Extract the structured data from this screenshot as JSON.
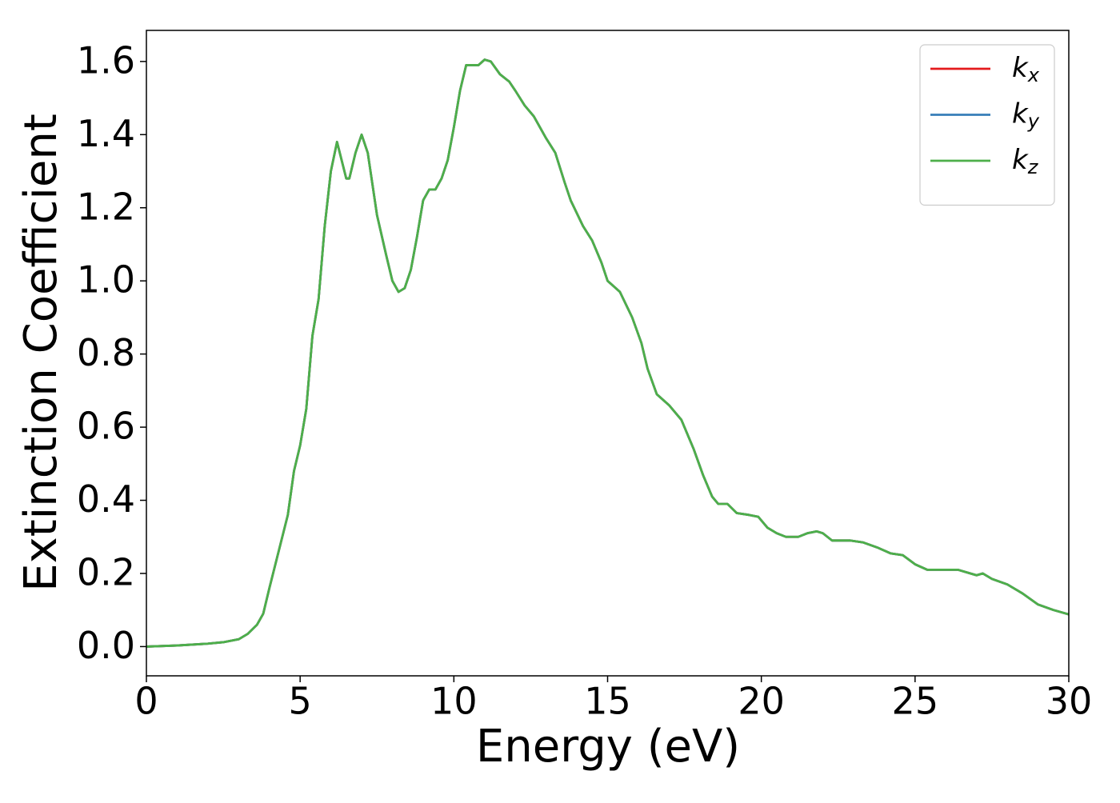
{
  "chart_data": {
    "type": "line",
    "xlabel": "Energy (eV)",
    "ylabel": "Extinction Coefficient",
    "x": [
      0,
      1,
      2,
      2.5,
      3,
      3.3,
      3.6,
      3.8,
      4,
      4.3,
      4.6,
      4.8,
      5,
      5.2,
      5.4,
      5.6,
      5.8,
      6.0,
      6.2,
      6.35,
      6.5,
      6.6,
      6.8,
      7.0,
      7.2,
      7.5,
      7.8,
      8.0,
      8.2,
      8.4,
      8.6,
      8.8,
      9.0,
      9.2,
      9.4,
      9.6,
      9.8,
      10.0,
      10.2,
      10.4,
      10.6,
      10.8,
      11.0,
      11.2,
      11.5,
      11.8,
      12.0,
      12.3,
      12.6,
      13.0,
      13.3,
      13.6,
      13.8,
      14.2,
      14.5,
      14.8,
      15.0,
      15.4,
      15.8,
      16.1,
      16.3,
      16.6,
      17.0,
      17.4,
      17.8,
      18.1,
      18.4,
      18.6,
      18.9,
      19.2,
      19.6,
      19.9,
      20.2,
      20.5,
      20.8,
      21.2,
      21.5,
      21.8,
      22.0,
      22.3,
      22.6,
      22.9,
      23.3,
      23.8,
      24.2,
      24.6,
      25.0,
      25.4,
      26.0,
      26.4,
      26.8,
      27.0,
      27.2,
      27.5,
      28.0,
      28.5,
      29.0,
      29.5,
      30.0
    ],
    "series": [
      {
        "name": "kx",
        "color": "#e41a1c",
        "values": [
          0,
          0.003,
          0.008,
          0.012,
          0.02,
          0.035,
          0.06,
          0.09,
          0.16,
          0.26,
          0.36,
          0.48,
          0.55,
          0.65,
          0.85,
          0.95,
          1.15,
          1.3,
          1.38,
          1.33,
          1.28,
          1.28,
          1.35,
          1.4,
          1.35,
          1.18,
          1.07,
          1.0,
          0.97,
          0.98,
          1.03,
          1.12,
          1.22,
          1.25,
          1.25,
          1.28,
          1.33,
          1.42,
          1.52,
          1.59,
          1.59,
          1.59,
          1.605,
          1.6,
          1.565,
          1.545,
          1.52,
          1.48,
          1.45,
          1.39,
          1.35,
          1.27,
          1.22,
          1.15,
          1.11,
          1.05,
          1.0,
          0.97,
          0.9,
          0.83,
          0.76,
          0.69,
          0.66,
          0.62,
          0.54,
          0.47,
          0.41,
          0.39,
          0.39,
          0.365,
          0.36,
          0.355,
          0.325,
          0.31,
          0.3,
          0.3,
          0.31,
          0.315,
          0.31,
          0.29,
          0.29,
          0.29,
          0.285,
          0.27,
          0.255,
          0.25,
          0.225,
          0.21,
          0.21,
          0.21,
          0.2,
          0.195,
          0.2,
          0.185,
          0.17,
          0.145,
          0.115,
          0.1,
          0.088
        ]
      },
      {
        "name": "ky",
        "color": "#377eb8",
        "values": [
          0,
          0.003,
          0.008,
          0.012,
          0.02,
          0.035,
          0.06,
          0.09,
          0.16,
          0.26,
          0.36,
          0.48,
          0.55,
          0.65,
          0.85,
          0.95,
          1.15,
          1.3,
          1.38,
          1.33,
          1.28,
          1.28,
          1.35,
          1.4,
          1.35,
          1.18,
          1.07,
          1.0,
          0.97,
          0.98,
          1.03,
          1.12,
          1.22,
          1.25,
          1.25,
          1.28,
          1.33,
          1.42,
          1.52,
          1.59,
          1.59,
          1.59,
          1.605,
          1.6,
          1.565,
          1.545,
          1.52,
          1.48,
          1.45,
          1.39,
          1.35,
          1.27,
          1.22,
          1.15,
          1.11,
          1.05,
          1.0,
          0.97,
          0.9,
          0.83,
          0.76,
          0.69,
          0.66,
          0.62,
          0.54,
          0.47,
          0.41,
          0.39,
          0.39,
          0.365,
          0.36,
          0.355,
          0.325,
          0.31,
          0.3,
          0.3,
          0.31,
          0.315,
          0.31,
          0.29,
          0.29,
          0.29,
          0.285,
          0.27,
          0.255,
          0.25,
          0.225,
          0.21,
          0.21,
          0.21,
          0.2,
          0.195,
          0.2,
          0.185,
          0.17,
          0.145,
          0.115,
          0.1,
          0.088
        ]
      },
      {
        "name": "kz",
        "color": "#4daf4a",
        "values": [
          0,
          0.003,
          0.008,
          0.012,
          0.02,
          0.035,
          0.06,
          0.09,
          0.16,
          0.26,
          0.36,
          0.48,
          0.55,
          0.65,
          0.85,
          0.95,
          1.15,
          1.3,
          1.38,
          1.33,
          1.28,
          1.28,
          1.35,
          1.4,
          1.35,
          1.18,
          1.07,
          1.0,
          0.97,
          0.98,
          1.03,
          1.12,
          1.22,
          1.25,
          1.25,
          1.28,
          1.33,
          1.42,
          1.52,
          1.59,
          1.59,
          1.59,
          1.605,
          1.6,
          1.565,
          1.545,
          1.52,
          1.48,
          1.45,
          1.39,
          1.35,
          1.27,
          1.22,
          1.15,
          1.11,
          1.05,
          1.0,
          0.97,
          0.9,
          0.83,
          0.76,
          0.69,
          0.66,
          0.62,
          0.54,
          0.47,
          0.41,
          0.39,
          0.39,
          0.365,
          0.36,
          0.355,
          0.325,
          0.31,
          0.3,
          0.3,
          0.31,
          0.315,
          0.31,
          0.29,
          0.29,
          0.29,
          0.285,
          0.27,
          0.255,
          0.25,
          0.225,
          0.21,
          0.21,
          0.21,
          0.2,
          0.195,
          0.2,
          0.185,
          0.17,
          0.145,
          0.115,
          0.1,
          0.088
        ]
      }
    ],
    "xlim": [
      0,
      30
    ],
    "xticks": [
      0,
      5,
      10,
      15,
      20,
      25,
      30
    ],
    "ylim": [
      -0.08,
      1.685
    ],
    "yticks": [
      {
        "value": 0,
        "label": "0.0"
      },
      0.2,
      0.4,
      0.6,
      0.8,
      {
        "value": 1,
        "label": "1.0"
      },
      1.2,
      1.4,
      1.6
    ],
    "grid": false,
    "legend": "upper right"
  }
}
